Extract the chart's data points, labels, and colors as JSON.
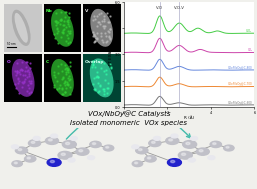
{
  "title_line1": "VOx/NbOy@C Catalysts",
  "title_line2": "Isolated monomeric  VOx species",
  "plot_right_labels": [
    "V₂O₅",
    "VO₂",
    "VOx/NbOy@C-800",
    "VOx/NbOy@C-700",
    "VOx/NbOy@C-600"
  ],
  "vline_labels": [
    "V-O",
    "V-O-V"
  ],
  "ylabel": "FT EXAFS",
  "xlabel": "R (Å)",
  "xlim": [
    0,
    6
  ],
  "ylim": [
    0,
    6.0
  ],
  "bg_color": "#f0f0ec",
  "curve_colors": [
    "#44cc44",
    "#cc44aa",
    "#6688dd",
    "#ee8833",
    "#777777"
  ],
  "curve_offsets": [
    4.2,
    3.1,
    2.1,
    1.15,
    0.1
  ],
  "vlines": [
    1.65,
    2.55
  ],
  "vline_color": "#9999bb",
  "arrow_color": "#44bbaa",
  "atom_gray": "#c0c0c8",
  "atom_blue": "#2222cc",
  "atom_white": "#e8e8ee"
}
